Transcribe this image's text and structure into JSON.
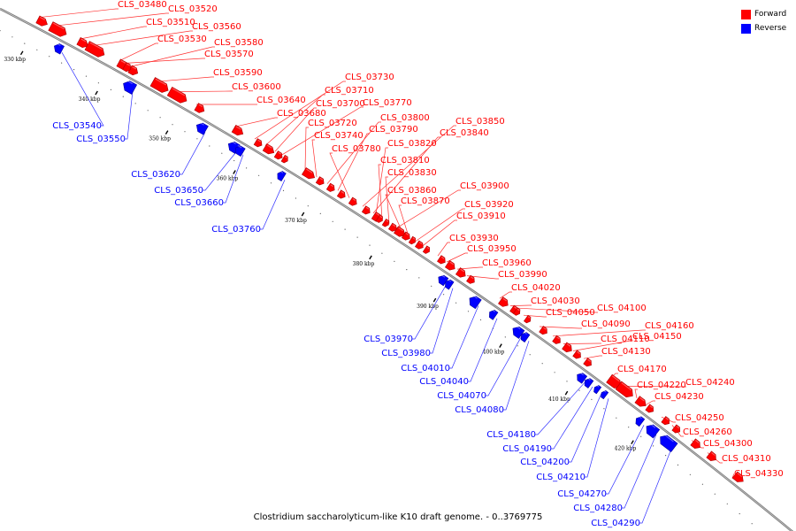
{
  "caption": "Clostridium saccharolyticum-like K10 draft genome. - 0..3769775",
  "legend": [
    {
      "label": "Forward",
      "color": "#ff0000"
    },
    {
      "label": "Reverse",
      "color": "#0000ff"
    }
  ],
  "colors": {
    "forward": "#ff0000",
    "reverse": "#0000ff",
    "backbone": "#7a7a7a"
  },
  "ticks": [
    "330 kbp",
    "340 kbp",
    "350 kbp",
    "360 kbp",
    "370 kbp",
    "380 kbp",
    "390 kbp",
    "400 kbp",
    "410 kbp",
    "420 kbp"
  ],
  "forward_genes": [
    "CLS_03480",
    "CLS_03520",
    "CLS_03510",
    "CLS_03560",
    "CLS_03530",
    "CLS_03580",
    "CLS_03570",
    "CLS_03590",
    "CLS_03600",
    "CLS_03640",
    "CLS_03680",
    "CLS_03730",
    "CLS_03710",
    "CLS_03700",
    "CLS_03770",
    "CLS_03720",
    "CLS_03740",
    "CLS_03800",
    "CLS_03790",
    "CLS_03780",
    "CLS_03850",
    "CLS_03840",
    "CLS_03820",
    "CLS_03810",
    "CLS_03830",
    "CLS_03900",
    "CLS_03860",
    "CLS_03870",
    "CLS_03920",
    "CLS_03910",
    "CLS_03930",
    "CLS_03950",
    "CLS_03960",
    "CLS_03990",
    "CLS_04020",
    "CLS_04030",
    "CLS_04100",
    "CLS_04050",
    "CLS_04090",
    "CLS_04160",
    "CLS_04110",
    "CLS_04150",
    "CLS_04130",
    "CLS_04170",
    "CLS_04240",
    "CLS_04220",
    "CLS_04230",
    "CLS_04250",
    "CLS_04260",
    "CLS_04300",
    "CLS_04310",
    "CLS_04330"
  ],
  "reverse_genes": [
    "CLS_03540",
    "CLS_03550",
    "CLS_03620",
    "CLS_03650",
    "CLS_03660",
    "CLS_03760",
    "CLS_03970",
    "CLS_03980",
    "CLS_04010",
    "CLS_04040",
    "CLS_04070",
    "CLS_04080",
    "CLS_04180",
    "CLS_04190",
    "CLS_04200",
    "CLS_04210",
    "CLS_04270",
    "CLS_04280",
    "CLS_04290"
  ]
}
